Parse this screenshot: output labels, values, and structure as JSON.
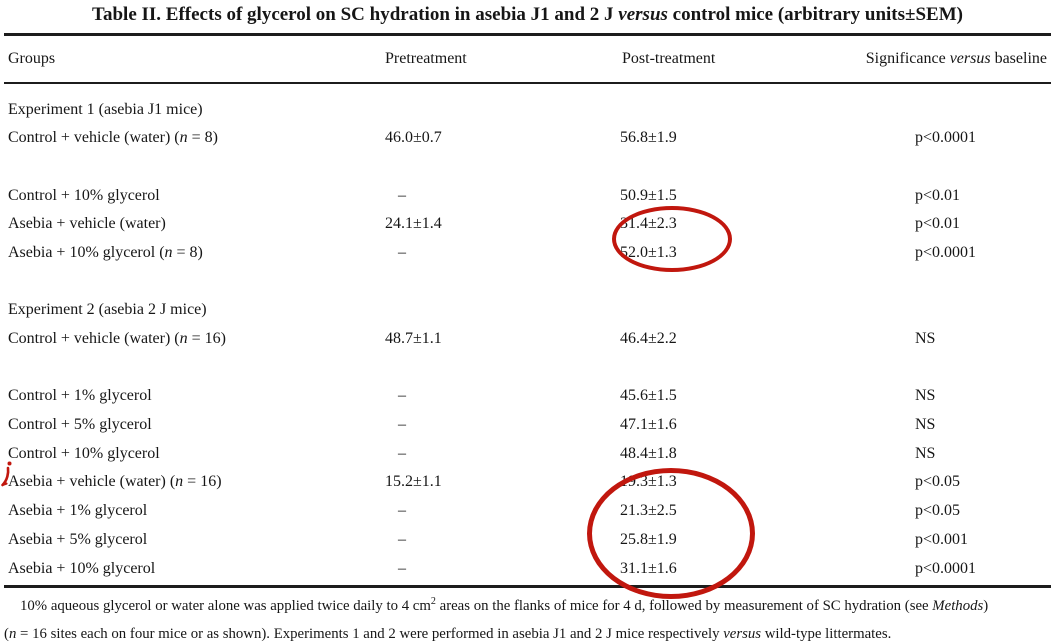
{
  "colors": {
    "annotation_red": "#c1170e",
    "text": "#161616",
    "rule": "#1c1c1c"
  },
  "title": {
    "pre": "Table II. Effects of glycerol on SC hydration in asebia J1 and 2 J ",
    "emph": "versus",
    "post": " control mice (arbitrary units±SEM)"
  },
  "header": {
    "groups": "Groups",
    "pretreatment": "Pretreatment",
    "post_treatment": "Post-treatment",
    "significance": {
      "pre": "Significance ",
      "emph": "versus",
      "post": " baseline"
    }
  },
  "rows": [
    {
      "type": "section",
      "label": [
        "Experiment 1 (asebia J1 mice)"
      ]
    },
    {
      "type": "data",
      "label": [
        "Control + vehicle (water) (",
        {
          "i": "n"
        },
        " = 8)"
      ],
      "pretreatment": "46.0±0.7",
      "post_treatment": "56.8±1.9",
      "significance": "p<0.0001"
    },
    {
      "type": "blank"
    },
    {
      "type": "data",
      "label": [
        "Control + 10% glycerol"
      ],
      "pretreatment": "–",
      "post_treatment": "50.9±1.5",
      "significance": "p<0.01"
    },
    {
      "type": "data",
      "label": [
        "Asebia + vehicle (water)"
      ],
      "pretreatment": "24.1±1.4",
      "post_treatment": "31.4±2.3",
      "significance": "p<0.01"
    },
    {
      "type": "data",
      "label": [
        "Asebia + 10% glycerol (",
        {
          "i": "n"
        },
        " = 8)"
      ],
      "pretreatment": "–",
      "post_treatment": "52.0±1.3",
      "significance": "p<0.0001"
    },
    {
      "type": "blank"
    },
    {
      "type": "section",
      "label": [
        "Experiment 2 (asebia 2 J mice)"
      ]
    },
    {
      "type": "data",
      "label": [
        "Control + vehicle (water) (",
        {
          "i": "n"
        },
        " = 16)"
      ],
      "pretreatment": "48.7±1.1",
      "post_treatment": "46.4±2.2",
      "significance": "NS"
    },
    {
      "type": "blank"
    },
    {
      "type": "data",
      "label": [
        "Control + 1% glycerol"
      ],
      "pretreatment": "–",
      "post_treatment": "45.6±1.5",
      "significance": "NS"
    },
    {
      "type": "data",
      "label": [
        "Control + 5% glycerol"
      ],
      "pretreatment": "–",
      "post_treatment": "47.1±1.6",
      "significance": "NS"
    },
    {
      "type": "data",
      "label": [
        "Control + 10% glycerol"
      ],
      "pretreatment": "–",
      "post_treatment": "48.4±1.8",
      "significance": "NS"
    },
    {
      "type": "data",
      "marked": true,
      "label": [
        "Asebia + vehicle (water) (",
        {
          "i": "n"
        },
        " = 16)"
      ],
      "pretreatment": "15.2±1.1",
      "post_treatment": "19.3±1.3",
      "significance": "p<0.05"
    },
    {
      "type": "data",
      "label": [
        "Asebia + 1% glycerol"
      ],
      "pretreatment": "–",
      "post_treatment": "21.3±2.5",
      "significance": "p<0.05"
    },
    {
      "type": "data",
      "label": [
        "Asebia + 5% glycerol"
      ],
      "pretreatment": "–",
      "post_treatment": "25.8±1.9",
      "significance": "p<0.001"
    },
    {
      "type": "data",
      "label": [
        "Asebia + 10% glycerol"
      ],
      "pretreatment": "–",
      "post_treatment": "31.1±1.6",
      "significance": "p<0.0001"
    }
  ],
  "footnote": {
    "line1": [
      {
        "t": "10% aqueous glycerol or water alone was applied twice daily to 4 cm"
      },
      {
        "sup": "2"
      },
      {
        "t": " areas on the flanks of mice for 4 d, followed by measurement of SC hydration (see "
      },
      {
        "i": "Methods"
      },
      {
        "t": ")"
      }
    ],
    "line2": [
      {
        "t": "("
      },
      {
        "i": "n"
      },
      {
        "t": " = 16 sites each on four mice or as shown). Experiments 1 and 2 were performed in asebia J1 and 2 J mice respectively "
      },
      {
        "i": "versus"
      },
      {
        "t": " wild-type littermates."
      }
    ]
  },
  "annotations": {
    "red_ellipse_1_circled_values": [
      "31.4±2.3",
      "52.0±1.3"
    ],
    "red_ellipse_2_circled_values": [
      "19.3±1.3",
      "21.3±2.5",
      "25.8±1.9",
      "31.1±1.6"
    ],
    "red_margin_mark_row": "Asebia + vehicle (water) (n = 16)"
  }
}
